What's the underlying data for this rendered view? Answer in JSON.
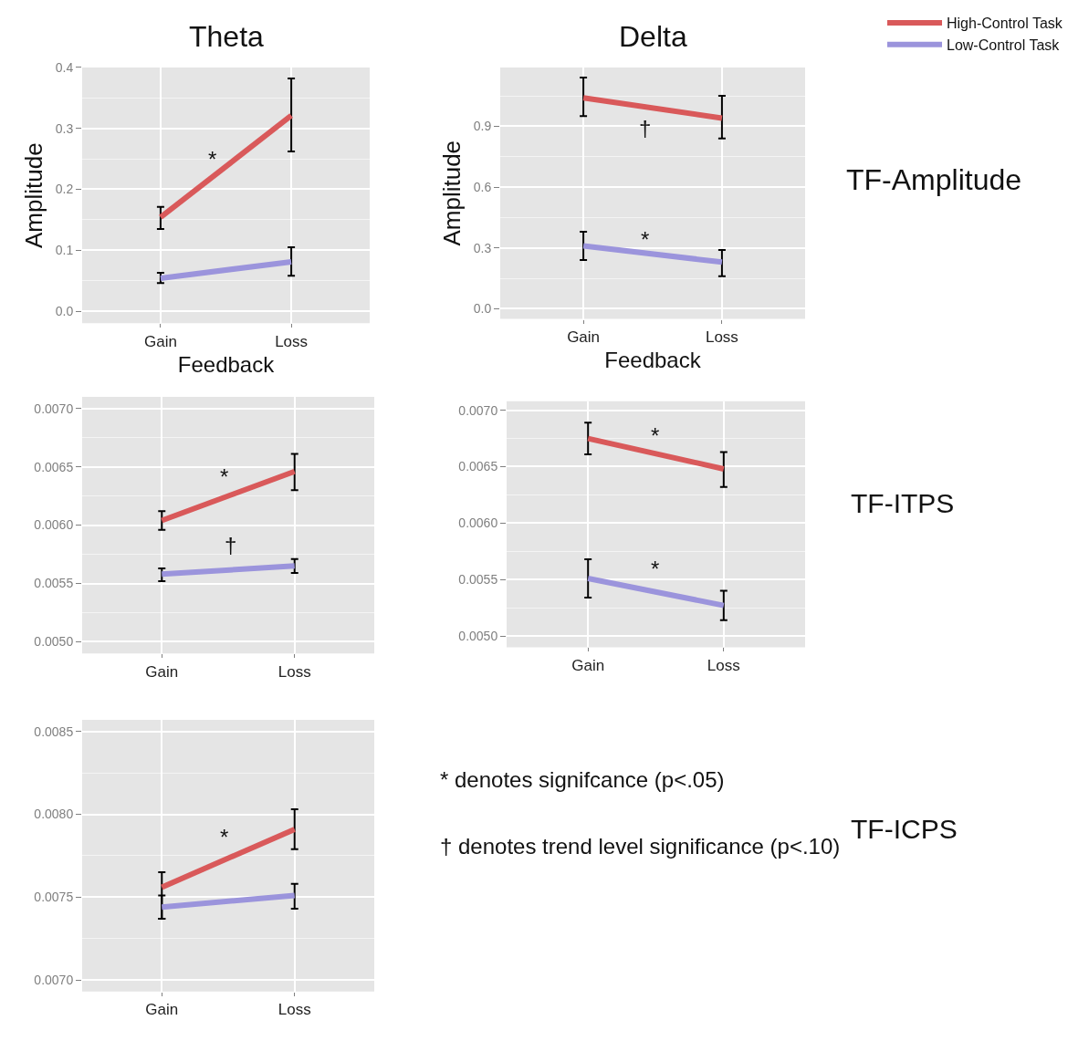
{
  "chart_data": [
    {
      "type": "line",
      "title": "Theta",
      "xlabel": "Feedback",
      "ylabel": "Amplitude",
      "categories": [
        "Gain",
        "Loss"
      ],
      "ylim": [
        -0.02,
        0.4
      ],
      "yticks": [
        {
          "value": 0,
          "label": "0.0"
        },
        0.1,
        0.2,
        0.3,
        0.4
      ],
      "grid": true,
      "legend": "top right",
      "series": [
        {
          "name": "High-Control Task",
          "color": "#d9595a",
          "values": [
            0.154,
            0.321
          ],
          "errors": [
            [
              0.135,
              0.171
            ],
            [
              0.262,
              0.382
            ]
          ]
        },
        {
          "name": "Low-Control Task",
          "color": "#9b94dc",
          "values": [
            0.054,
            0.081
          ],
          "errors": [
            [
              0.046,
              0.063
            ],
            [
              0.058,
              0.105
            ]
          ]
        }
      ],
      "annotations": [
        "*"
      ]
    },
    {
      "type": "line",
      "title": "Delta",
      "xlabel": "Feedback",
      "ylabel": "Amplitude",
      "categories": [
        "Gain",
        "Loss"
      ],
      "ylim": [
        -0.05,
        1.19
      ],
      "yticks": [
        {
          "value": 0,
          "label": "0.0"
        },
        0.3,
        0.6,
        0.9
      ],
      "grid": true,
      "series": [
        {
          "color": "#d9595a",
          "values": [
            1.04,
            0.94
          ],
          "errors": [
            [
              0.95,
              1.14
            ],
            [
              0.84,
              1.05
            ]
          ]
        },
        {
          "color": "#9b94dc",
          "values": [
            0.31,
            0.23
          ],
          "errors": [
            [
              0.24,
              0.38
            ],
            [
              0.16,
              0.29
            ]
          ]
        }
      ],
      "annotations": [
        "TF-Amplitude",
        "†",
        "*"
      ]
    },
    {
      "type": "line",
      "categories": [
        "Gain",
        "Loss"
      ],
      "ylim": [
        0.0049,
        0.0071
      ],
      "yticks": [
        {
          "value": 0.005,
          "label": "0.0050"
        },
        0.0055,
        {
          "value": 0.006,
          "label": "0.0060"
        },
        0.0065,
        {
          "value": 0.007,
          "label": "0.0070"
        }
      ],
      "grid": true,
      "series": [
        {
          "color": "#d9595a",
          "values": [
            0.00604,
            0.00646
          ],
          "errors": [
            [
              0.00596,
              0.00612
            ],
            [
              0.0063,
              0.00661
            ]
          ]
        },
        {
          "color": "#9b94dc",
          "values": [
            0.00558,
            0.00565
          ],
          "errors": [
            [
              0.00552,
              0.00563
            ],
            [
              0.00559,
              0.00571
            ]
          ]
        }
      ],
      "annotations": [
        "*",
        "†"
      ]
    },
    {
      "type": "line",
      "categories": [
        "Gain",
        "Loss"
      ],
      "ylim": [
        0.0049,
        0.00708
      ],
      "yticks": [
        {
          "value": 0.005,
          "label": "0.0050"
        },
        0.0055,
        {
          "value": 0.006,
          "label": "0.0060"
        },
        0.0065,
        {
          "value": 0.007,
          "label": "0.0070"
        }
      ],
      "grid": true,
      "series": [
        {
          "color": "#d9595a",
          "values": [
            0.00675,
            0.00648
          ],
          "errors": [
            [
              0.00661,
              0.00689
            ],
            [
              0.00632,
              0.00663
            ]
          ]
        },
        {
          "color": "#9b94dc",
          "values": [
            0.00551,
            0.00527
          ],
          "errors": [
            [
              0.00534,
              0.00568
            ],
            [
              0.00514,
              0.0054
            ]
          ]
        }
      ],
      "annotations": [
        "TF-ITPS",
        "*",
        "*"
      ]
    },
    {
      "type": "line",
      "categories": [
        "Gain",
        "Loss"
      ],
      "ylim": [
        0.00693,
        0.00857
      ],
      "yticks": [
        {
          "value": 0.007,
          "label": "0.0070"
        },
        0.0075,
        {
          "value": 0.008,
          "label": "0.0080"
        },
        0.0085
      ],
      "grid": true,
      "series": [
        {
          "color": "#d9595a",
          "values": [
            0.00756,
            0.00791
          ],
          "errors": [
            [
              0.00737,
              0.00765
            ],
            [
              0.00779,
              0.00803
            ]
          ]
        },
        {
          "color": "#9b94dc",
          "values": [
            0.00744,
            0.00751
          ],
          "errors": [
            [
              0.00737,
              0.00751
            ],
            [
              0.00743,
              0.00758
            ]
          ]
        }
      ],
      "annotations": [
        "TF-ICPS",
        "* denotes signifcance (p<.05)",
        "† denotes trend level significance (p<.10)",
        "*"
      ]
    }
  ]
}
